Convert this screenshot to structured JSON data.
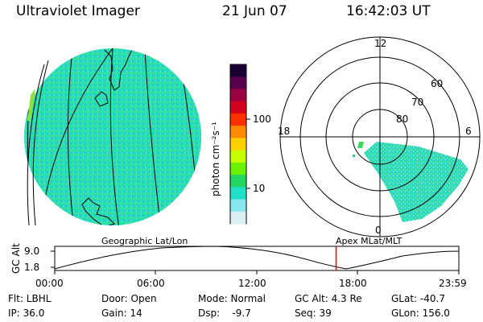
{
  "header": {
    "instrument": "Ultraviolet Imager",
    "date": "21 Jun 07",
    "time": "16:42:03 UT"
  },
  "colorbar": {
    "unit": "photon cm⁻²s⁻¹",
    "ticks": [
      "100",
      "10"
    ],
    "colors": [
      "#1a0030",
      "#5a0050",
      "#9b0040",
      "#d40020",
      "#ff3000",
      "#ff8a00",
      "#ffd000",
      "#c8ff00",
      "#6cf000",
      "#22d860",
      "#20e0c8",
      "#88e8f0",
      "#d8f0f4"
    ]
  },
  "polar": {
    "hour_labels": {
      "top": "12",
      "left": "18",
      "right": "6",
      "bottom": "0"
    },
    "lat_labels": [
      "60",
      "70",
      "80"
    ]
  },
  "panel_labels": {
    "geo": "Geographic Lat/Lon",
    "apex": "Apex MLat/MLT"
  },
  "timeline": {
    "ylabel": "GC Alt",
    "ymax": "9.0",
    "ymin": "1.8",
    "ticks": [
      "00:00",
      "06:00",
      "12:00",
      "18:00",
      "23:59"
    ],
    "current_time_hours": 16.7
  },
  "status": {
    "flt": "Flt: LBHL",
    "ip": "IP: 36.0",
    "door": "Door: Open",
    "gain": "Gain: 14",
    "mode": "Mode: Normal",
    "dsp": "Dsp:    -9.7",
    "gcalt": "GC Alt: 4.3 Re",
    "seq": "Seq: 39",
    "glat": "GLat: -40.7",
    "glon": "GLon: 156.0"
  }
}
